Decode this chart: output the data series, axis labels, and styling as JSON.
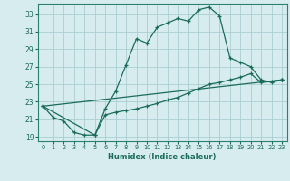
{
  "xlabel": "Humidex (Indice chaleur)",
  "bg_color": "#d6ecee",
  "grid_color": "#aacdd2",
  "line_color": "#1a6b5a",
  "spine_color": "#2d8070",
  "xlim": [
    -0.5,
    23.5
  ],
  "ylim": [
    18.5,
    34.2
  ],
  "yticks": [
    19,
    21,
    23,
    25,
    27,
    29,
    31,
    33
  ],
  "xticks": [
    0,
    1,
    2,
    3,
    4,
    5,
    6,
    7,
    8,
    9,
    10,
    11,
    12,
    13,
    14,
    15,
    16,
    17,
    18,
    19,
    20,
    21,
    22,
    23
  ],
  "series1_x": [
    0,
    1,
    2,
    3,
    4,
    5,
    6,
    7,
    8,
    9,
    10,
    11,
    12,
    13,
    14,
    15,
    16,
    17,
    18,
    19,
    20,
    21,
    22,
    23
  ],
  "series1_y": [
    22.5,
    21.2,
    20.8,
    19.5,
    19.2,
    19.2,
    22.2,
    24.2,
    27.2,
    30.2,
    29.7,
    31.5,
    32.0,
    32.5,
    32.2,
    33.5,
    33.8,
    32.8,
    28.0,
    27.5,
    27.0,
    25.5,
    25.2,
    25.5
  ],
  "series2_x": [
    0,
    5,
    6,
    7,
    8,
    9,
    10,
    11,
    12,
    13,
    14,
    15,
    16,
    17,
    18,
    19,
    20,
    21,
    22,
    23
  ],
  "series2_y": [
    22.5,
    19.2,
    21.5,
    21.8,
    22.0,
    22.2,
    22.5,
    22.8,
    23.2,
    23.5,
    24.0,
    24.5,
    25.0,
    25.2,
    25.5,
    25.8,
    26.2,
    25.2,
    25.3,
    25.5
  ],
  "series3_x": [
    0,
    23
  ],
  "series3_y": [
    22.5,
    25.5
  ]
}
